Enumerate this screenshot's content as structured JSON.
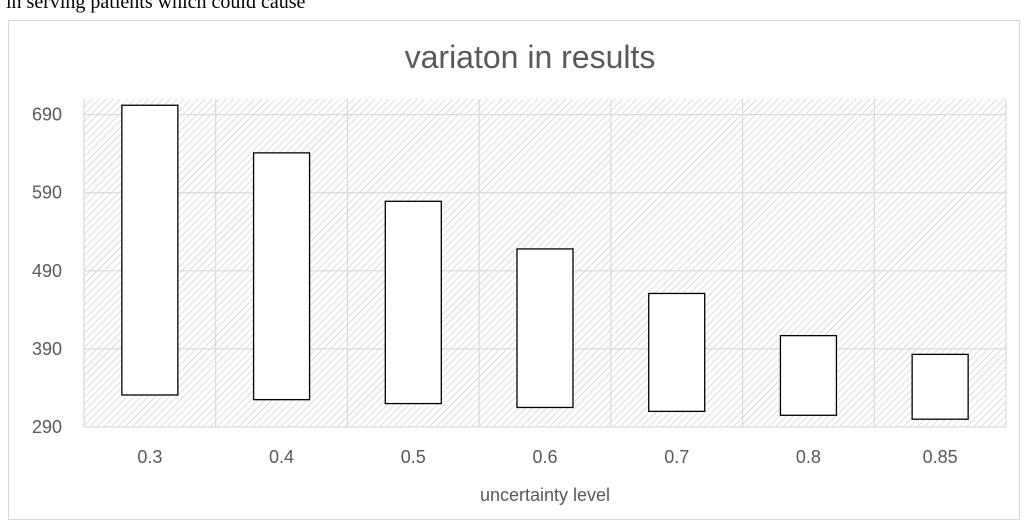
{
  "document": {
    "top_text": "in serving patients which could cause"
  },
  "chart_data": {
    "type": "bar",
    "title": "variaton in results",
    "xlabel": "uncertainty level",
    "ylabel": "",
    "categories": [
      "0.3",
      "0.4",
      "0.5",
      "0.6",
      "0.7",
      "0.8",
      "0.85"
    ],
    "series": [
      {
        "low": [
          331,
          325,
          320,
          315,
          310,
          305,
          300
        ],
        "high": [
          702,
          641,
          579,
          518,
          461,
          407,
          383
        ]
      }
    ],
    "yticks": [
      290,
      390,
      490,
      590,
      690
    ],
    "ylim": [
      290,
      710
    ],
    "grid": true,
    "legend": "none",
    "colors": {
      "bar_fill": "#ffffff",
      "bar_stroke": "#000000",
      "grid": "#d9d9d9",
      "hatch": "#bfbfbf",
      "text": "#595959"
    }
  }
}
